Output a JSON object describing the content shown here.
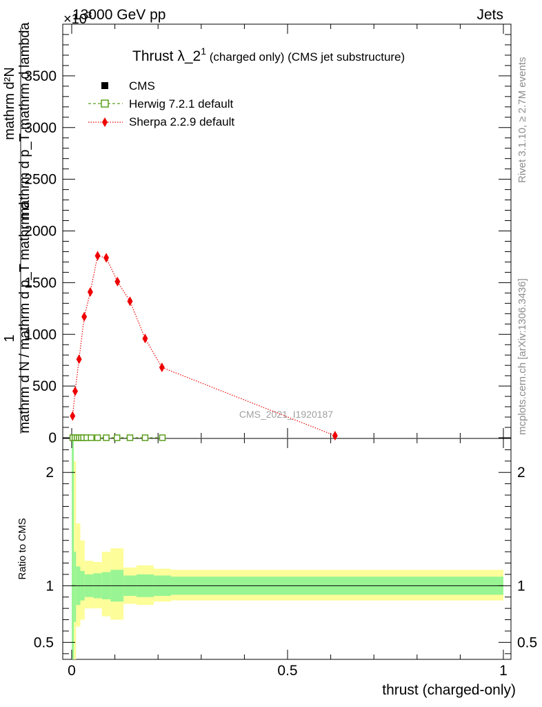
{
  "header": {
    "energy_label": "13000 GeV pp",
    "category_label": "Jets",
    "exponent_label": "×10",
    "exponent_power": "3"
  },
  "side_text": {
    "rivet": "Rivet 3.1.10, ≥ 2.7M events",
    "mcplots": "mcplots.cern.ch [arXiv:1306.3436]"
  },
  "watermark": "CMS_2021_I1920187",
  "chart_data": {
    "type": "line",
    "title_main": "Thrust λ_2",
    "title_sup": "1",
    "title_rest": " (charged only) (CMS jet substructure)",
    "ylabel_lines": [
      "1",
      "mathrm d N / mathrm d p_T mathrm d",
      "mathrm d²N",
      "mathrm d p_T mathrm d lambda"
    ],
    "xlabel": "thrust (charged-only)",
    "ratio_ylabel": "Ratio to CMS",
    "xlim": [
      0,
      1
    ],
    "ylim": [
      0,
      4000
    ],
    "ratio_ylim": [
      0.35,
      2.3
    ],
    "x_ticks": [
      {
        "value": 0,
        "label": "0"
      },
      {
        "value": 0.5,
        "label": "0.5"
      },
      {
        "value": 1,
        "label": "1"
      }
    ],
    "y_ticks": [
      {
        "value": 500,
        "label": "500"
      },
      {
        "value": 1000,
        "label": "1000"
      },
      {
        "value": 1500,
        "label": "1500"
      },
      {
        "value": 2000,
        "label": "2000"
      },
      {
        "value": 2500,
        "label": "2500"
      },
      {
        "value": 3000,
        "label": "3000"
      },
      {
        "value": 3500,
        "label": "3500"
      }
    ],
    "ratio_ticks": [
      {
        "value": 0.5,
        "label": "0.5"
      },
      {
        "value": 1,
        "label": "1"
      },
      {
        "value": 2,
        "label": "2"
      }
    ],
    "legend_position": "top-left",
    "series": [
      {
        "name": "CMS",
        "color": "#000000",
        "marker": "square",
        "x": [
          0.0025,
          0.0075,
          0.0125,
          0.0175,
          0.0225,
          0.0275,
          0.035,
          0.045,
          0.06,
          0.08,
          0.105,
          0.135,
          0.17,
          0.21
        ],
        "y": [
          0,
          0,
          0,
          0,
          0,
          0,
          0,
          0,
          0,
          0,
          0,
          0,
          0,
          0
        ]
      },
      {
        "name": "Herwig 7.2.1 default",
        "color": "#5a9e1a",
        "marker": "open-square",
        "x": [
          0.0025,
          0.0075,
          0.0125,
          0.0175,
          0.0225,
          0.0275,
          0.035,
          0.045,
          0.06,
          0.08,
          0.105,
          0.135,
          0.17,
          0.21
        ],
        "y": [
          0,
          0,
          0,
          0,
          0,
          0,
          0,
          0,
          0,
          0,
          0,
          0,
          0,
          0
        ]
      },
      {
        "name": "Sherpa 2.2.9 default",
        "color": "#ee0000",
        "marker": "diamond",
        "x": [
          0.002,
          0.008,
          0.017,
          0.029,
          0.043,
          0.06,
          0.08,
          0.106,
          0.135,
          0.17,
          0.209,
          0.61
        ],
        "y": [
          210,
          450,
          760,
          1170,
          1410,
          1760,
          1740,
          1510,
          1320,
          960,
          680,
          20
        ],
        "err": [
          25,
          30,
          35,
          40,
          40,
          45,
          45,
          40,
          35,
          30,
          20,
          10
        ]
      }
    ],
    "ratio_bands": {
      "edges": [
        0,
        0.005,
        0.01,
        0.02,
        0.03,
        0.05,
        0.07,
        0.09,
        0.12,
        0.15,
        0.19,
        0.23,
        1.0
      ],
      "inner_lo": [
        0.0,
        0.68,
        0.83,
        0.87,
        0.9,
        0.89,
        0.88,
        0.86,
        0.91,
        0.9,
        0.91,
        0.92
      ],
      "inner_hi": [
        2.3,
        1.3,
        1.17,
        1.13,
        1.1,
        1.11,
        1.12,
        1.14,
        1.09,
        1.1,
        1.09,
        1.08
      ],
      "outer_lo": [
        0.0,
        0.35,
        0.64,
        0.7,
        0.8,
        0.8,
        0.73,
        0.7,
        0.84,
        0.83,
        0.86,
        0.87
      ],
      "outer_hi": [
        2.3,
        2.1,
        1.55,
        1.4,
        1.22,
        1.21,
        1.3,
        1.33,
        1.16,
        1.18,
        1.15,
        1.14
      ]
    }
  }
}
